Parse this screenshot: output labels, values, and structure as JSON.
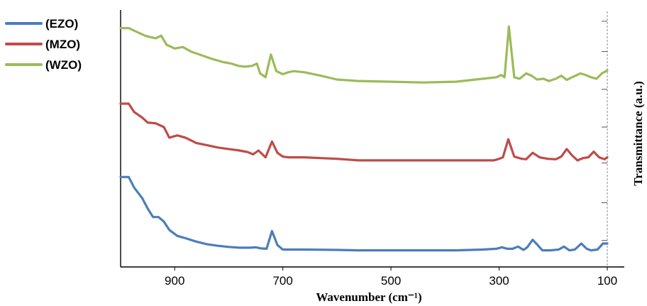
{
  "chart_data": {
    "type": "line",
    "title": "",
    "xlabel": "Wavenumber (cm⁻¹)",
    "ylabel": "Transmittance (a.u.)",
    "xlim": [
      1000,
      100
    ],
    "x_reversed": true,
    "x_ticks": [
      900,
      700,
      500,
      300,
      100
    ],
    "y_ticks_labeled": false,
    "grid": false,
    "legend_position": "top-left, outside plot",
    "series": [
      {
        "name": "(EZO)",
        "color": "#4a7ebb",
        "points": [
          [
            1000,
            1.98
          ],
          [
            985,
            1.98
          ],
          [
            975,
            1.7
          ],
          [
            960,
            1.42
          ],
          [
            950,
            1.15
          ],
          [
            940,
            0.92
          ],
          [
            930,
            0.92
          ],
          [
            920,
            0.8
          ],
          [
            910,
            0.58
          ],
          [
            895,
            0.42
          ],
          [
            880,
            0.36
          ],
          [
            860,
            0.27
          ],
          [
            840,
            0.2
          ],
          [
            820,
            0.16
          ],
          [
            800,
            0.13
          ],
          [
            780,
            0.11
          ],
          [
            760,
            0.11
          ],
          [
            750,
            0.12
          ],
          [
            740,
            0.09
          ],
          [
            730,
            0.08
          ],
          [
            720,
            0.55
          ],
          [
            710,
            0.18
          ],
          [
            700,
            0.06
          ],
          [
            690,
            0.06
          ],
          [
            660,
            0.06
          ],
          [
            600,
            0.05
          ],
          [
            560,
            0.04
          ],
          [
            500,
            0.04
          ],
          [
            440,
            0.04
          ],
          [
            380,
            0.04
          ],
          [
            330,
            0.06
          ],
          [
            305,
            0.08
          ],
          [
            295,
            0.12
          ],
          [
            285,
            0.08
          ],
          [
            275,
            0.08
          ],
          [
            265,
            0.14
          ],
          [
            255,
            0.05
          ],
          [
            248,
            0.12
          ],
          [
            238,
            0.32
          ],
          [
            230,
            0.2
          ],
          [
            220,
            0.04
          ],
          [
            205,
            0.04
          ],
          [
            190,
            0.06
          ],
          [
            180,
            0.14
          ],
          [
            170,
            0.04
          ],
          [
            160,
            0.06
          ],
          [
            148,
            0.22
          ],
          [
            138,
            0.08
          ],
          [
            130,
            0.04
          ],
          [
            118,
            0.06
          ],
          [
            108,
            0.22
          ],
          [
            100,
            0.22
          ]
        ]
      },
      {
        "name": "(MZO)",
        "color": "#be4b48",
        "points": [
          [
            1000,
            3.92
          ],
          [
            985,
            3.92
          ],
          [
            975,
            3.7
          ],
          [
            960,
            3.55
          ],
          [
            950,
            3.42
          ],
          [
            935,
            3.4
          ],
          [
            920,
            3.3
          ],
          [
            910,
            3.02
          ],
          [
            895,
            3.08
          ],
          [
            880,
            3.02
          ],
          [
            860,
            2.88
          ],
          [
            840,
            2.82
          ],
          [
            820,
            2.76
          ],
          [
            800,
            2.72
          ],
          [
            780,
            2.68
          ],
          [
            765,
            2.64
          ],
          [
            755,
            2.58
          ],
          [
            745,
            2.68
          ],
          [
            732,
            2.5
          ],
          [
            720,
            2.92
          ],
          [
            710,
            2.62
          ],
          [
            700,
            2.52
          ],
          [
            690,
            2.5
          ],
          [
            660,
            2.5
          ],
          [
            600,
            2.46
          ],
          [
            560,
            2.42
          ],
          [
            500,
            2.42
          ],
          [
            440,
            2.42
          ],
          [
            380,
            2.42
          ],
          [
            330,
            2.42
          ],
          [
            310,
            2.42
          ],
          [
            300,
            2.46
          ],
          [
            293,
            2.5
          ],
          [
            283,
            2.98
          ],
          [
            272,
            2.52
          ],
          [
            258,
            2.46
          ],
          [
            250,
            2.45
          ],
          [
            238,
            2.62
          ],
          [
            225,
            2.5
          ],
          [
            210,
            2.46
          ],
          [
            195,
            2.45
          ],
          [
            185,
            2.52
          ],
          [
            175,
            2.72
          ],
          [
            165,
            2.55
          ],
          [
            155,
            2.42
          ],
          [
            145,
            2.48
          ],
          [
            135,
            2.5
          ],
          [
            125,
            2.65
          ],
          [
            115,
            2.5
          ],
          [
            105,
            2.45
          ],
          [
            100,
            2.5
          ]
        ]
      },
      {
        "name": "(WZO)",
        "color": "#9bbb59",
        "points": [
          [
            1000,
            5.92
          ],
          [
            985,
            5.92
          ],
          [
            970,
            5.82
          ],
          [
            955,
            5.72
          ],
          [
            945,
            5.68
          ],
          [
            935,
            5.65
          ],
          [
            925,
            5.72
          ],
          [
            915,
            5.48
          ],
          [
            900,
            5.38
          ],
          [
            885,
            5.42
          ],
          [
            870,
            5.3
          ],
          [
            850,
            5.2
          ],
          [
            830,
            5.1
          ],
          [
            810,
            5.02
          ],
          [
            795,
            4.98
          ],
          [
            782,
            4.92
          ],
          [
            770,
            4.9
          ],
          [
            757,
            4.92
          ],
          [
            748,
            4.98
          ],
          [
            742,
            4.72
          ],
          [
            732,
            4.62
          ],
          [
            722,
            5.22
          ],
          [
            712,
            4.78
          ],
          [
            700,
            4.7
          ],
          [
            690,
            4.75
          ],
          [
            680,
            4.78
          ],
          [
            660,
            4.75
          ],
          [
            630,
            4.66
          ],
          [
            600,
            4.56
          ],
          [
            560,
            4.52
          ],
          [
            500,
            4.5
          ],
          [
            440,
            4.48
          ],
          [
            380,
            4.5
          ],
          [
            330,
            4.58
          ],
          [
            305,
            4.62
          ],
          [
            296,
            4.68
          ],
          [
            290,
            4.62
          ],
          [
            282,
            5.96
          ],
          [
            272,
            4.62
          ],
          [
            262,
            4.58
          ],
          [
            250,
            4.72
          ],
          [
            240,
            4.66
          ],
          [
            230,
            4.56
          ],
          [
            218,
            4.58
          ],
          [
            208,
            4.52
          ],
          [
            195,
            4.58
          ],
          [
            185,
            4.66
          ],
          [
            175,
            4.55
          ],
          [
            165,
            4.62
          ],
          [
            150,
            4.72
          ],
          [
            140,
            4.68
          ],
          [
            130,
            4.62
          ],
          [
            120,
            4.58
          ],
          [
            110,
            4.72
          ],
          [
            100,
            4.8
          ]
        ]
      }
    ]
  }
}
